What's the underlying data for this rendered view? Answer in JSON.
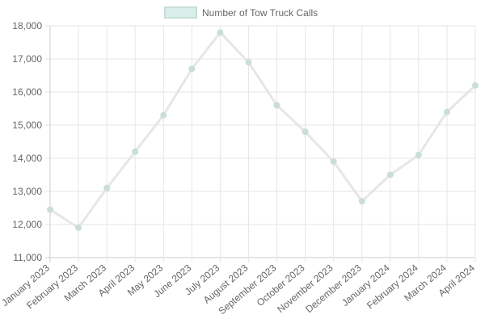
{
  "chart_data": {
    "type": "line",
    "categories": [
      "January 2023",
      "February 2023",
      "March 2023",
      "April 2023",
      "May 2023",
      "June 2023",
      "July 2023",
      "August 2023",
      "September 2023",
      "October 2023",
      "November 2023",
      "December 2023",
      "January 2024",
      "February 2024",
      "March 2024",
      "April 2024"
    ],
    "series": [
      {
        "name": "Number of Tow Truck Calls",
        "values": [
          12450,
          11900,
          13100,
          14200,
          15300,
          16700,
          17800,
          16900,
          15600,
          14800,
          13900,
          12700,
          13500,
          14100,
          15400,
          16200
        ]
      }
    ],
    "ylim": [
      11000,
      18000
    ],
    "yticks": [
      "11,000",
      "12,000",
      "13,000",
      "14,000",
      "15,000",
      "16,000",
      "17,000",
      "18,000"
    ],
    "grid": true,
    "legend_position": "top",
    "colors": {
      "line": "#e6e6e6",
      "fill": "#d8efec",
      "point": "#c9ddd9",
      "grid": "#e6e6e6",
      "axis": "#cccccc",
      "text": "#666666"
    }
  }
}
